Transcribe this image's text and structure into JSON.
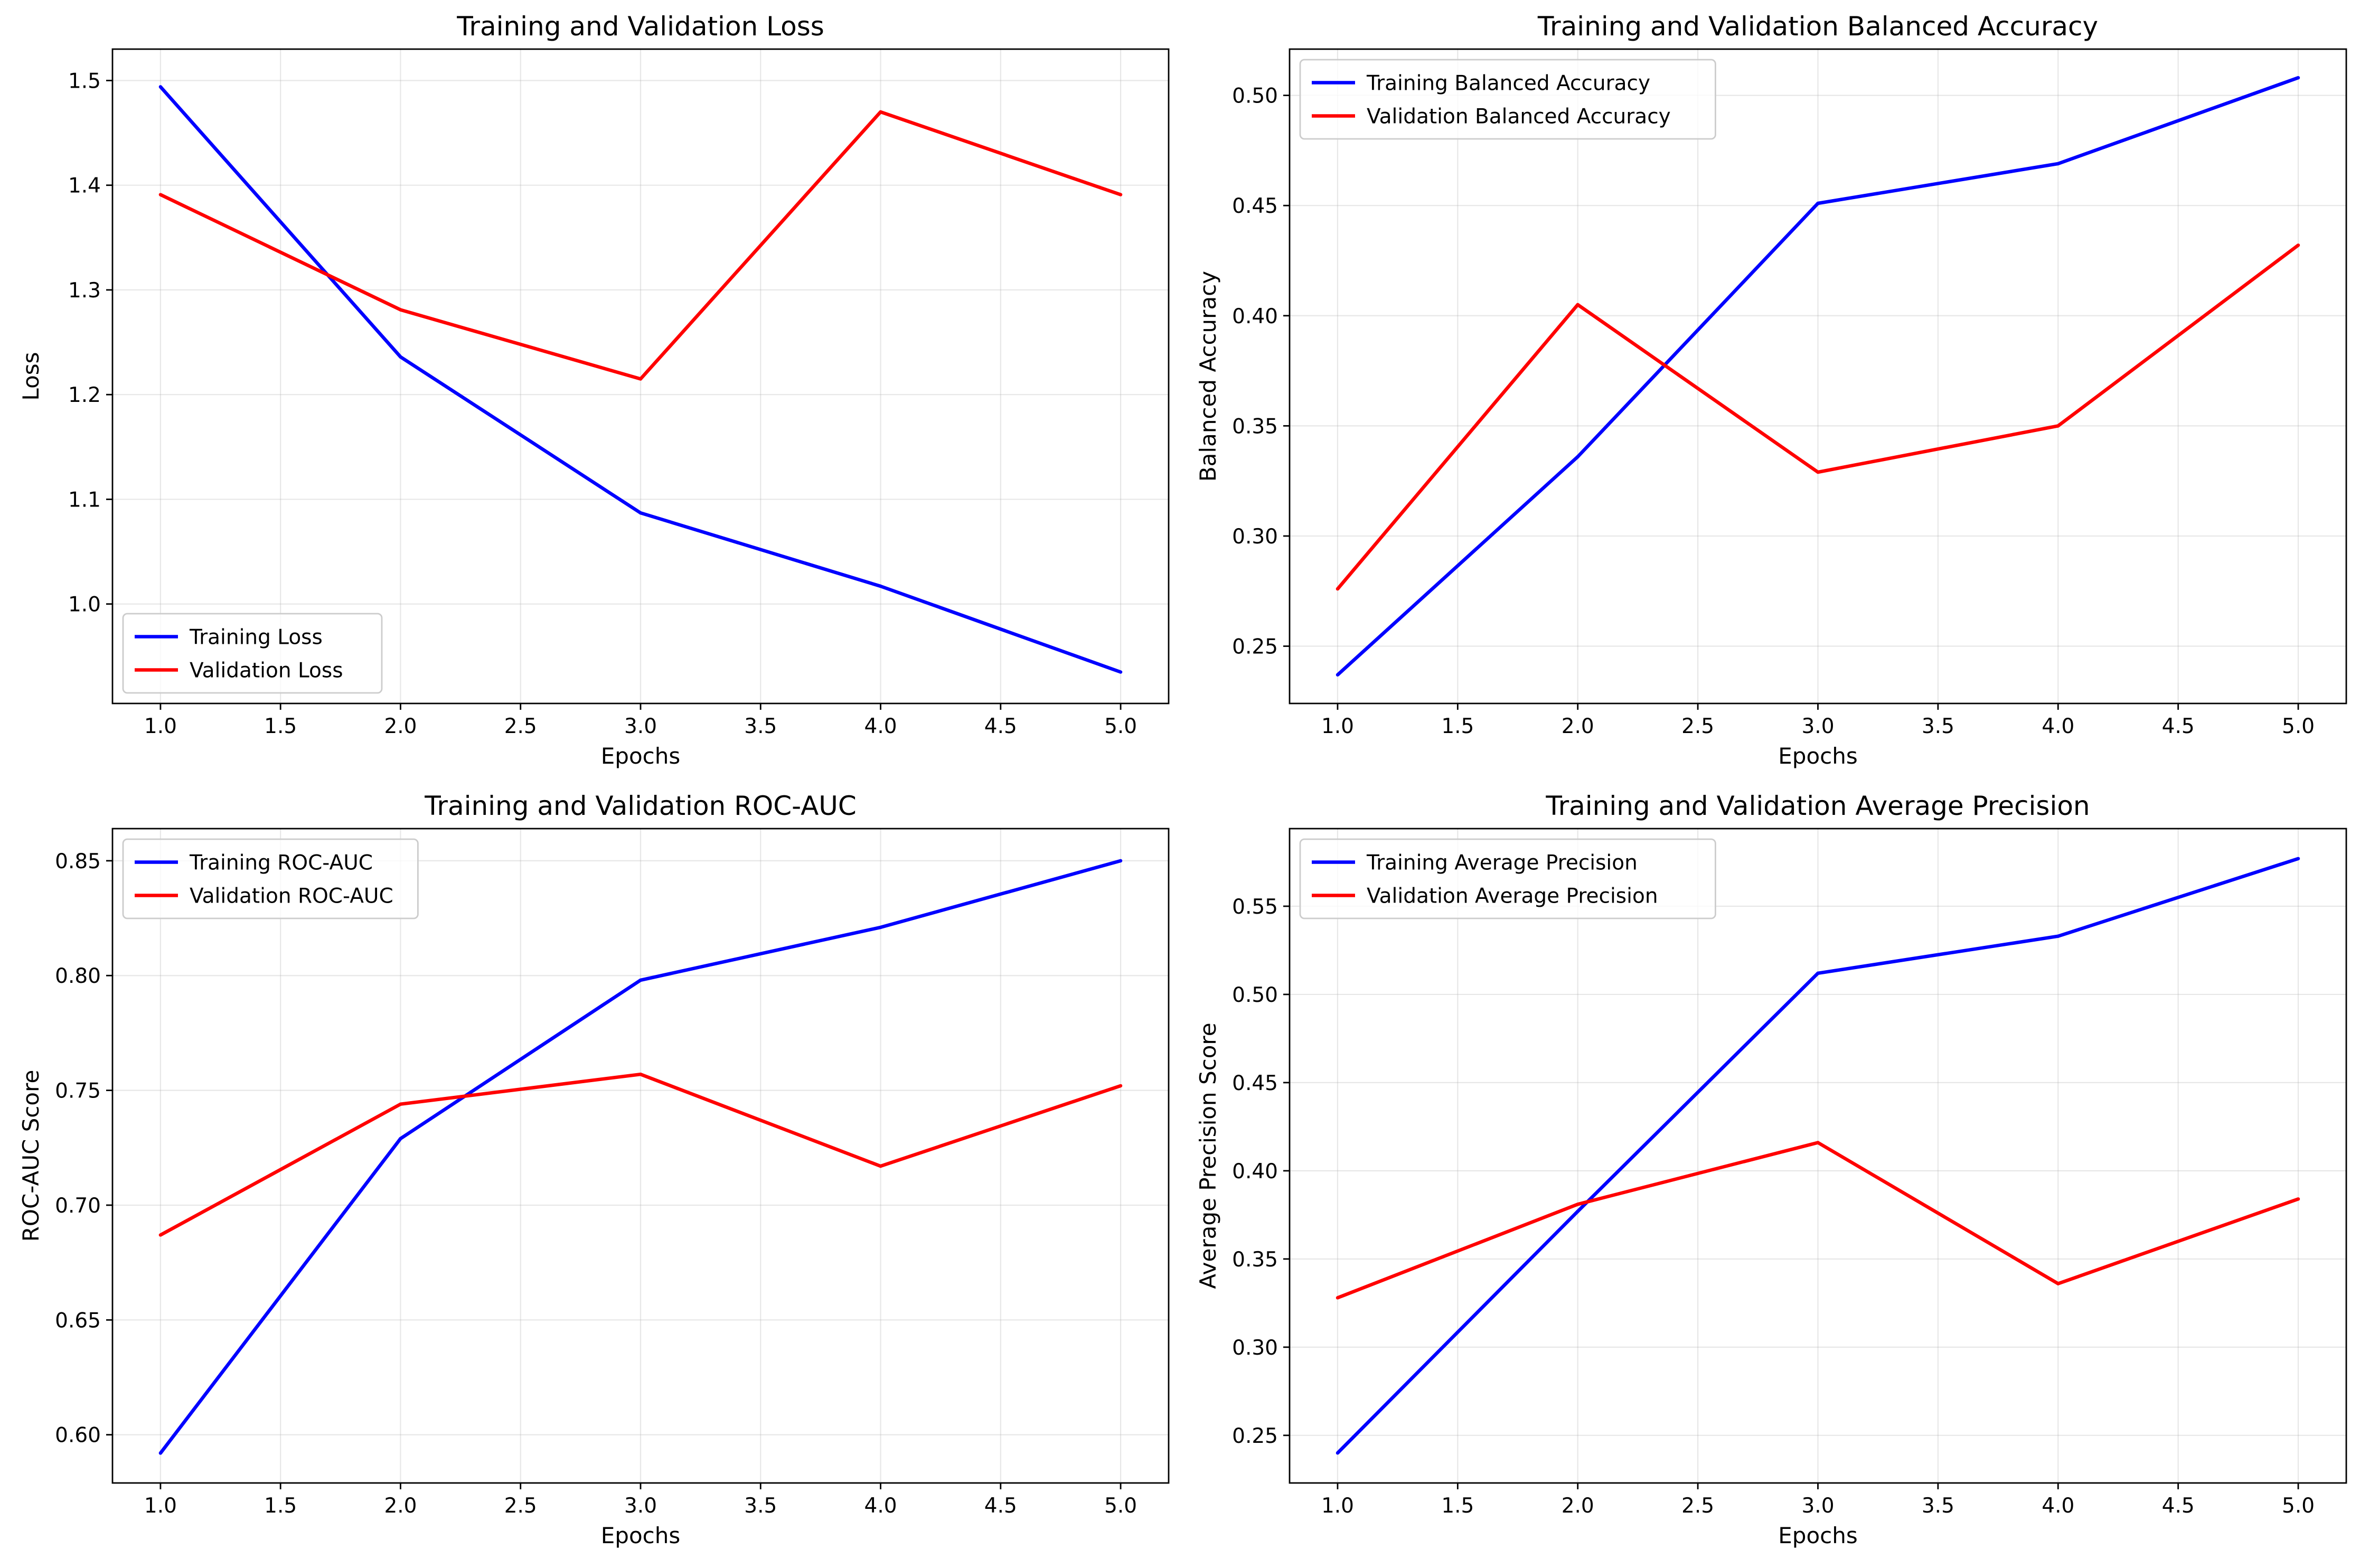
{
  "chart_data": [
    {
      "type": "line",
      "title": "Training and Validation Loss",
      "xlabel": "Epochs",
      "ylabel": "Loss",
      "x": [
        1,
        2,
        3,
        4,
        5
      ],
      "xlim": [
        0.8,
        5.2
      ],
      "ylim": [
        0.905,
        1.53
      ],
      "xticks": [
        "1.0",
        "1.5",
        "2.0",
        "2.5",
        "3.0",
        "3.5",
        "4.0",
        "4.5",
        "5.0"
      ],
      "yticks": [
        "1.0",
        "1.1",
        "1.2",
        "1.3",
        "1.4",
        "1.5"
      ],
      "grid": true,
      "legend_position": "lower-left",
      "series": [
        {
          "name": "Training Loss",
          "color": "#0000ff",
          "values": [
            1.494,
            1.236,
            1.087,
            1.017,
            0.935
          ]
        },
        {
          "name": "Validation Loss",
          "color": "#ff0000",
          "values": [
            1.391,
            1.281,
            1.215,
            1.47,
            1.391
          ]
        }
      ]
    },
    {
      "type": "line",
      "title": "Training and Validation Balanced Accuracy",
      "xlabel": "Epochs",
      "ylabel": "Balanced Accuracy",
      "x": [
        1,
        2,
        3,
        4,
        5
      ],
      "xlim": [
        0.8,
        5.2
      ],
      "ylim": [
        0.224,
        0.521
      ],
      "xticks": [
        "1.0",
        "1.5",
        "2.0",
        "2.5",
        "3.0",
        "3.5",
        "4.0",
        "4.5",
        "5.0"
      ],
      "yticks": [
        "0.25",
        "0.30",
        "0.35",
        "0.40",
        "0.45",
        "0.50"
      ],
      "grid": true,
      "legend_position": "upper-left",
      "series": [
        {
          "name": "Training Balanced Accuracy",
          "color": "#0000ff",
          "values": [
            0.237,
            0.336,
            0.451,
            0.469,
            0.508
          ]
        },
        {
          "name": "Validation Balanced Accuracy",
          "color": "#ff0000",
          "values": [
            0.276,
            0.405,
            0.329,
            0.35,
            0.432
          ]
        }
      ]
    },
    {
      "type": "line",
      "title": "Training and Validation ROC-AUC",
      "xlabel": "Epochs",
      "ylabel": "ROC-AUC Score",
      "x": [
        1,
        2,
        3,
        4,
        5
      ],
      "xlim": [
        0.8,
        5.2
      ],
      "ylim": [
        0.579,
        0.864
      ],
      "xticks": [
        "1.0",
        "1.5",
        "2.0",
        "2.5",
        "3.0",
        "3.5",
        "4.0",
        "4.5",
        "5.0"
      ],
      "yticks": [
        "0.60",
        "0.65",
        "0.70",
        "0.75",
        "0.80",
        "0.85"
      ],
      "grid": true,
      "legend_position": "upper-left",
      "series": [
        {
          "name": "Training ROC-AUC",
          "color": "#0000ff",
          "values": [
            0.592,
            0.729,
            0.798,
            0.821,
            0.85
          ]
        },
        {
          "name": "Validation ROC-AUC",
          "color": "#ff0000",
          "values": [
            0.687,
            0.744,
            0.757,
            0.717,
            0.752
          ]
        }
      ]
    },
    {
      "type": "line",
      "title": "Training and Validation Average Precision",
      "xlabel": "Epochs",
      "ylabel": "Average Precision Score",
      "x": [
        1,
        2,
        3,
        4,
        5
      ],
      "xlim": [
        0.8,
        5.2
      ],
      "ylim": [
        0.223,
        0.594
      ],
      "xticks": [
        "1.0",
        "1.5",
        "2.0",
        "2.5",
        "3.0",
        "3.5",
        "4.0",
        "4.5",
        "5.0"
      ],
      "yticks": [
        "0.25",
        "0.30",
        "0.35",
        "0.40",
        "0.45",
        "0.50",
        "0.55"
      ],
      "grid": true,
      "legend_position": "upper-left",
      "series": [
        {
          "name": "Training Average Precision",
          "color": "#0000ff",
          "values": [
            0.24,
            0.377,
            0.512,
            0.533,
            0.577
          ]
        },
        {
          "name": "Validation Average Precision",
          "color": "#ff0000",
          "values": [
            0.328,
            0.381,
            0.416,
            0.336,
            0.384
          ]
        }
      ]
    }
  ]
}
